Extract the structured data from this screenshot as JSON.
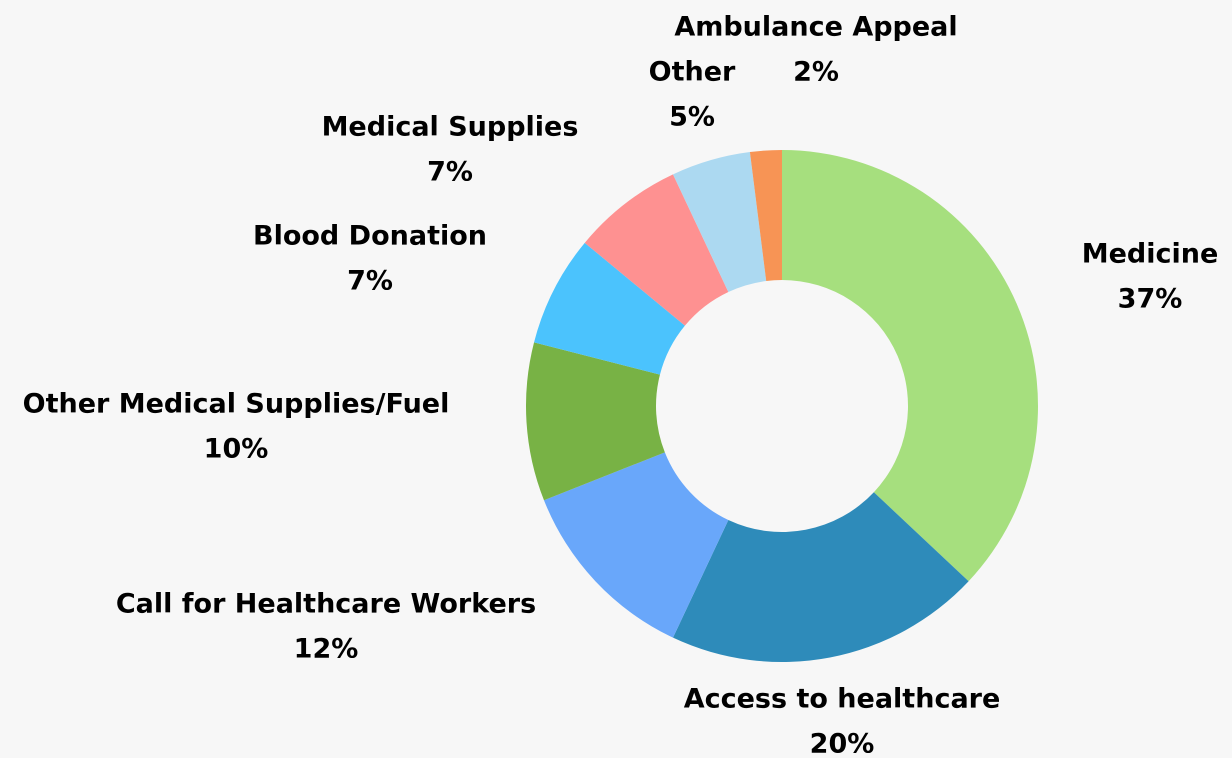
{
  "chart_data": {
    "type": "donut",
    "categories": [
      "Medicine",
      "Access to healthcare",
      "Call for Healthcare Workers",
      "Other Medical Supplies/Fuel",
      "Blood Donation",
      "Medical Supplies",
      "Other",
      "Ambulance Appeal"
    ],
    "values": [
      37,
      20,
      12,
      10,
      7,
      7,
      5,
      2
    ],
    "value_labels": [
      "37%",
      "20%",
      "12%",
      "10%",
      "7%",
      "7%",
      "5%",
      "2%"
    ],
    "colors": [
      "#a6df7e",
      "#2e8bba",
      "#69a7fa",
      "#78b245",
      "#4bc3fd",
      "#fe9191",
      "#acd9f1",
      "#f79455"
    ]
  }
}
